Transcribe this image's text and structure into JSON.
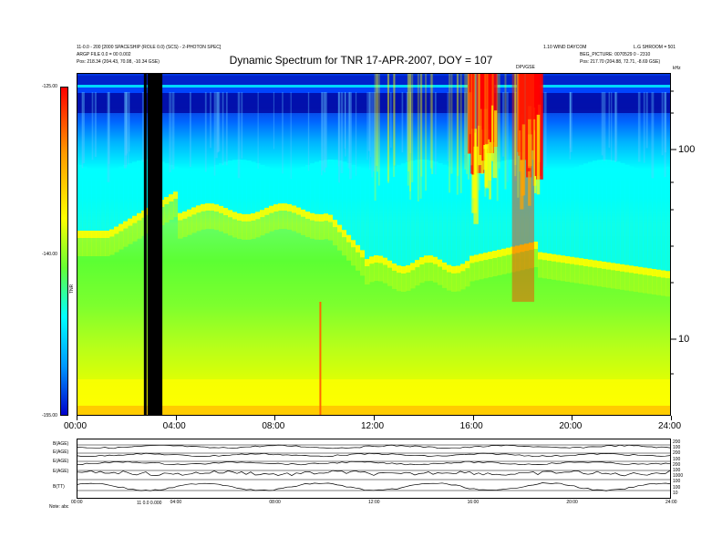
{
  "chart_data": {
    "type": "heatmap",
    "title": "Dynamic Spectrum for TNR 17-APR-2007, DOY = 107",
    "header_left": [
      "11-0.0 - 200 [2000 SPACESHIP (ROLE 0.0) (SCS) - 2-PHOTON SPEC]",
      "ARGP FILE 0.0 = 00 0.002",
      "Pos:   218.34 (204.43, 70.08, -10.34 GSE)"
    ],
    "header_right": [
      "1.10 WIND DAYCOM",
      "L.G SHROOM = 501",
      "BEG_PICTURE: 0070529  0 - 2310",
      "Pos:   217.70 (204.88, 72.71, -8.69 GSE)"
    ],
    "header_marker": "DPVGSE",
    "colorbar": {
      "ticks": [
        "-125.00",
        "-140.00",
        "-155.00"
      ],
      "range": [
        -155,
        -125
      ],
      "label": "TNR"
    },
    "y_axis": {
      "scale": "log",
      "ticks": [
        "100",
        "10"
      ],
      "unit": "kHz",
      "range": [
        4,
        250
      ]
    },
    "x_axis": {
      "ticks": [
        "00:00",
        "04:00",
        "08:00",
        "12:00",
        "16:00",
        "20:00",
        "24:00"
      ],
      "range_hours": [
        0,
        24
      ]
    },
    "data_gap_hours": [
      2.8,
      3.4
    ],
    "bursts_hours": [
      [
        15.8,
        16.8
      ],
      [
        17.8,
        18.6
      ]
    ],
    "features": {
      "intense_emission_label": "DPVGSE",
      "spike_hour": 9.8
    },
    "bottom_panels": {
      "labels": [
        "B(AGE)",
        "E(AGE)",
        "E(AGE)",
        "E(AGE)",
        "B(TT)"
      ],
      "ticks_right": [
        "200",
        "100",
        "200",
        "100",
        "200",
        "100",
        "1000",
        "100",
        "100",
        "10"
      ],
      "x_ticks": [
        "00:00",
        "04:00",
        "08:00",
        "12:00",
        "16:00",
        "20:00",
        "24:00"
      ],
      "footer_left": "Note: abc",
      "footer_mid": "11 0.0 0.000"
    },
    "colors": {
      "high": "#ff0000",
      "mid_high": "#ffff00",
      "mid": "#66ff33",
      "low_mid": "#00ffff",
      "low": "#0000cc",
      "gap": "#000000"
    }
  }
}
